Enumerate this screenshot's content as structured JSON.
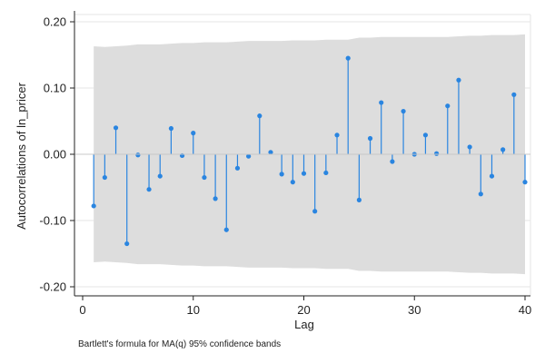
{
  "chart_data": {
    "type": "stem",
    "title": "",
    "xlabel": "Lag",
    "ylabel": "Autocorrelations of ln_pricer",
    "note": "Bartlett's formula for MA(q) 95% confidence bands",
    "xlim": [
      0,
      40
    ],
    "ylim": [
      -0.2,
      0.2
    ],
    "x_ticks": [
      0,
      10,
      20,
      30,
      40
    ],
    "x_tick_labels": [
      "0",
      "10",
      "20",
      "30",
      "40"
    ],
    "y_ticks": [
      -0.2,
      -0.1,
      0,
      0.1,
      0.2
    ],
    "y_tick_labels": [
      "-0.20",
      "-0.10",
      "0.00",
      "0.10",
      "0.20"
    ],
    "grid": true,
    "legend": "none",
    "colors": {
      "series": "#2a85e0",
      "band": "#dddddd",
      "grid": "#e6e6e6",
      "axis": "#222222"
    },
    "x": [
      1,
      2,
      3,
      4,
      5,
      6,
      7,
      8,
      9,
      10,
      11,
      12,
      13,
      14,
      15,
      16,
      17,
      18,
      19,
      20,
      21,
      22,
      23,
      24,
      25,
      26,
      27,
      28,
      29,
      30,
      31,
      32,
      33,
      34,
      35,
      36,
      37,
      38,
      39,
      40
    ],
    "values": [
      -0.078,
      -0.035,
      0.04,
      -0.135,
      -0.001,
      -0.053,
      -0.033,
      0.039,
      -0.002,
      0.032,
      -0.035,
      -0.067,
      -0.114,
      -0.021,
      -0.003,
      0.058,
      0.003,
      -0.03,
      -0.042,
      -0.029,
      -0.086,
      -0.028,
      0.029,
      0.145,
      -0.069,
      0.024,
      0.078,
      -0.011,
      0.065,
      0.0,
      0.029,
      0.001,
      0.073,
      0.112,
      0.011,
      -0.06,
      -0.033,
      0.007,
      0.09,
      -0.042
    ],
    "confidence_band": [
      0.163,
      0.162,
      0.163,
      0.164,
      0.166,
      0.166,
      0.166,
      0.167,
      0.168,
      0.168,
      0.169,
      0.169,
      0.169,
      0.17,
      0.171,
      0.171,
      0.171,
      0.171,
      0.172,
      0.172,
      0.172,
      0.173,
      0.173,
      0.173,
      0.176,
      0.176,
      0.177,
      0.177,
      0.177,
      0.177,
      0.177,
      0.177,
      0.177,
      0.178,
      0.179,
      0.179,
      0.18,
      0.18,
      0.18,
      0.181
    ]
  }
}
